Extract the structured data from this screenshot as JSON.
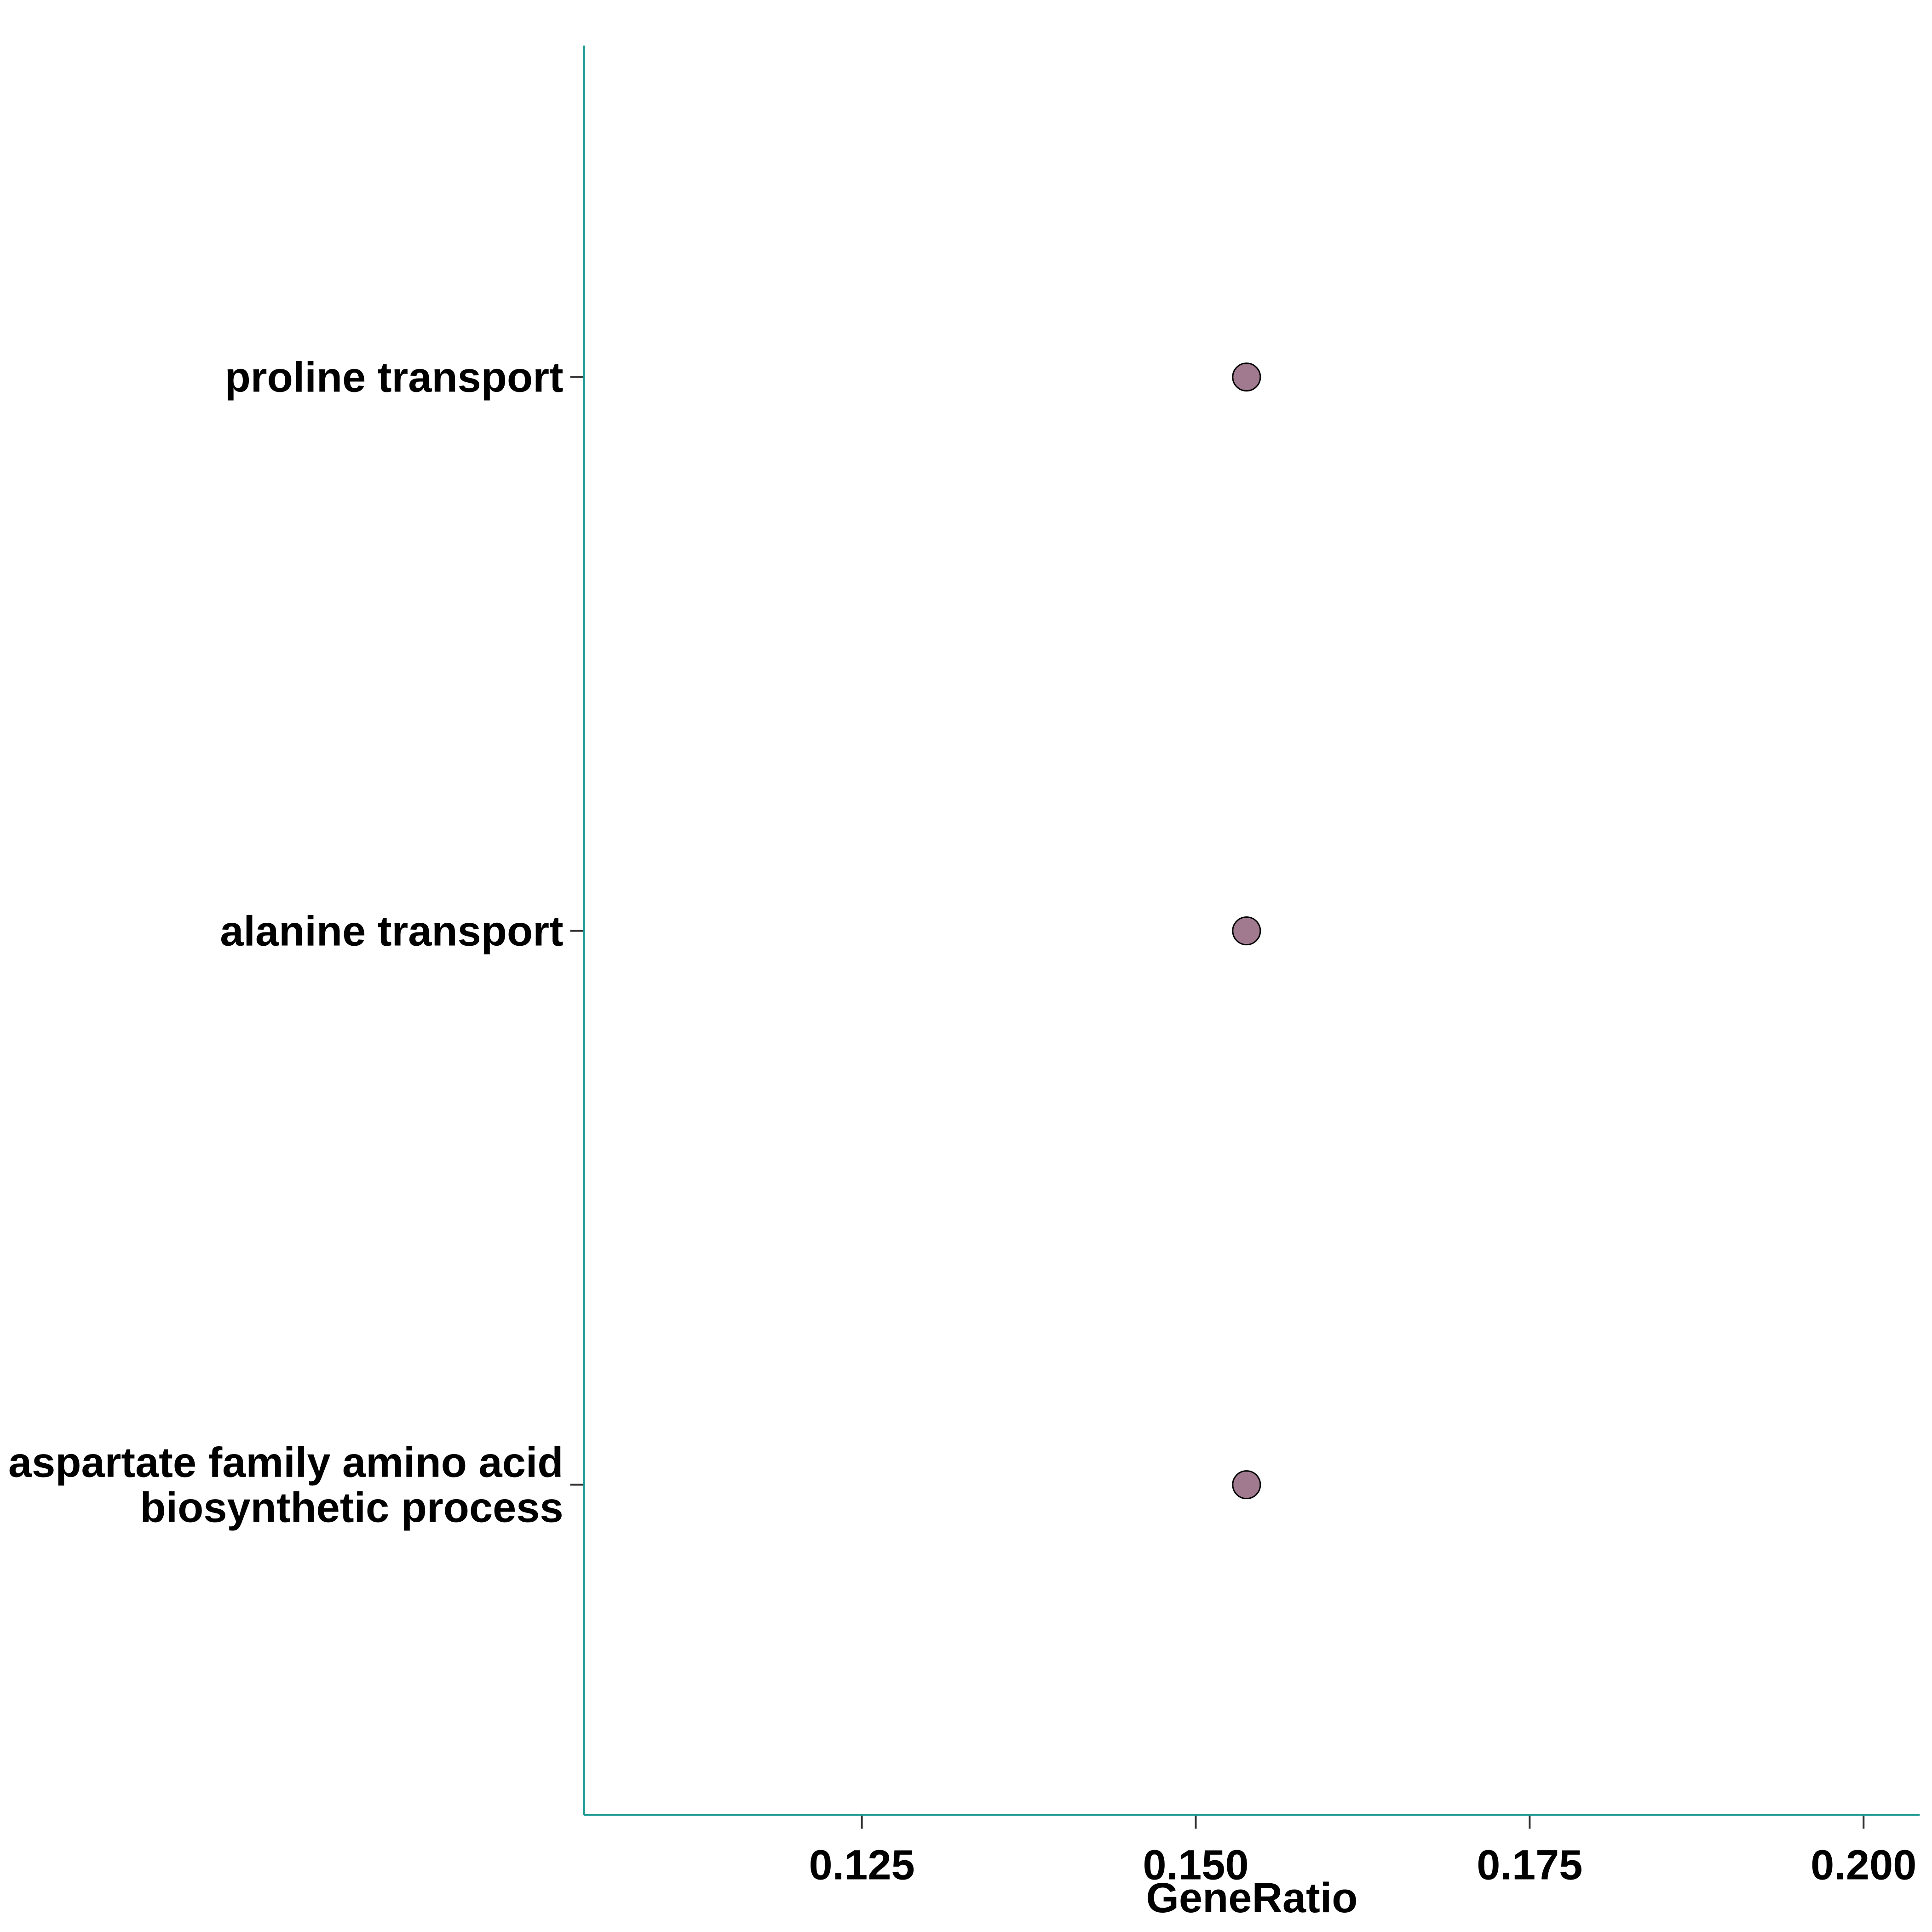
{
  "chart_data": {
    "type": "scatter",
    "title": "",
    "xlabel": "GeneRatio",
    "ylabel": "",
    "xlim": [
      0.1042,
      0.2042
    ],
    "xticks": [
      "0.125",
      "0.150",
      "0.175",
      "0.200"
    ],
    "categories": [
      "proline transport",
      "alanine transport",
      "aspartate family amino acid\nbiosynthetic process"
    ],
    "series": [
      {
        "values": [
          0.1538,
          0.1538,
          0.1538
        ],
        "color": "#a17a90"
      }
    ],
    "axis_color": "#1a9993",
    "grid": false,
    "legend": "none"
  }
}
